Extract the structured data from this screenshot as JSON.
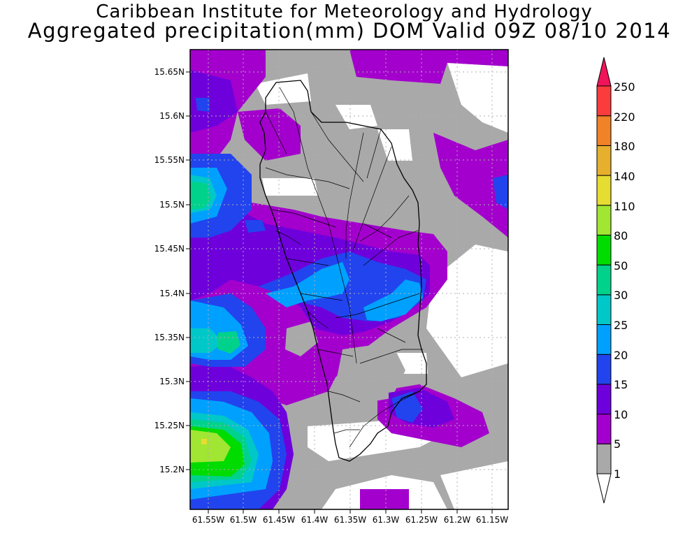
{
  "header": {
    "title_line1": "Caribbean Institute for Meteorology and Hydrology",
    "title_line2": "Aggregated precipitation(mm) DOM Valid 09Z 08/10 2014"
  },
  "map": {
    "lat_labels": [
      "15.65N",
      "15.6N",
      "15.55N",
      "15.5N",
      "15.45N",
      "15.4N",
      "15.35N",
      "15.3N",
      "15.25N",
      "15.2N"
    ],
    "lon_labels": [
      "61.55W",
      "61.5W",
      "61.45W",
      "61.4W",
      "61.35W",
      "61.3W",
      "61.25W",
      "61.2W",
      "61.15W"
    ]
  },
  "colorbar": {
    "levels": [
      "1",
      "5",
      "10",
      "15",
      "20",
      "25",
      "30",
      "50",
      "80",
      "110",
      "140",
      "180",
      "220",
      "250"
    ],
    "colors": [
      "#a9a9a9",
      "#a300cd",
      "#6e00dc",
      "#2244ee",
      "#00a0ff",
      "#00c8c8",
      "#00d28c",
      "#00dc00",
      "#a0e632",
      "#e6dc32",
      "#e6af2d",
      "#f08228",
      "#fa3c3c",
      "#f0145a"
    ]
  }
}
